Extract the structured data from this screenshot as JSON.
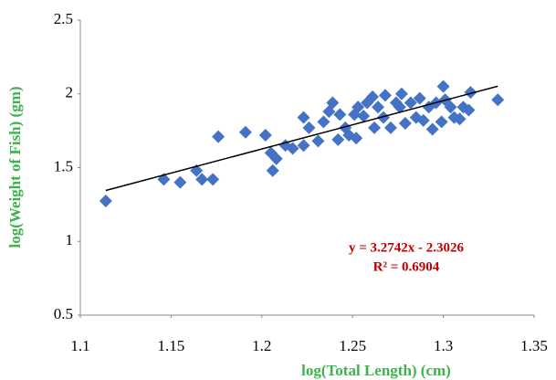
{
  "chart_data": {
    "type": "scatter",
    "x_label": "log(Total Length) (cm)",
    "y_label": "log(Weight of Fish) (gm)",
    "xlim": [
      1.1,
      1.35
    ],
    "xticks": [
      1.1,
      1.15,
      1.2,
      1.25,
      1.3,
      1.35
    ],
    "ylim": [
      0.5,
      2.5
    ],
    "yticks": [
      0.5,
      1,
      1.5,
      2,
      2.5
    ],
    "x": [
      1.114,
      1.146,
      1.155,
      1.164,
      1.167,
      1.173,
      1.176,
      1.191,
      1.202,
      1.205,
      1.206,
      1.208,
      1.213,
      1.217,
      1.223,
      1.223,
      1.226,
      1.231,
      1.234,
      1.237,
      1.239,
      1.242,
      1.243,
      1.246,
      1.248,
      1.251,
      1.253,
      1.252,
      1.256,
      1.258,
      1.261,
      1.262,
      1.264,
      1.267,
      1.268,
      1.271,
      1.274,
      1.276,
      1.277,
      1.279,
      1.282,
      1.285,
      1.287,
      1.289,
      1.292,
      1.294,
      1.296,
      1.299,
      1.3,
      1.301,
      1.304,
      1.306,
      1.309,
      1.311,
      1.314,
      1.315,
      1.33
    ],
    "series": [
      {
        "color": "#4472c4",
        "values": [
          1.274,
          1.42,
          1.4,
          1.48,
          1.42,
          1.42,
          1.71,
          1.74,
          1.72,
          1.6,
          1.48,
          1.56,
          1.65,
          1.63,
          1.65,
          1.84,
          1.77,
          1.68,
          1.81,
          1.88,
          1.94,
          1.69,
          1.86,
          1.77,
          1.72,
          1.86,
          1.91,
          1.7,
          1.85,
          1.94,
          1.98,
          1.77,
          1.91,
          1.84,
          1.99,
          1.77,
          1.94,
          1.91,
          2.0,
          1.8,
          1.94,
          1.84,
          1.97,
          1.82,
          1.91,
          1.76,
          1.94,
          1.81,
          2.05,
          1.96,
          1.91,
          1.84,
          1.83,
          1.91,
          1.89,
          2.01,
          1.96
        ]
      }
    ],
    "trendline": {
      "x": [
        1.114,
        1.33
      ],
      "y": [
        1.345,
        2.052
      ],
      "color": "#000000"
    },
    "annotations": [
      "y = 3.2742x - 2.3026",
      "R² = 0.6904"
    ],
    "annotation_color": "#c00000",
    "axis_label_color": "#3cb44b"
  }
}
